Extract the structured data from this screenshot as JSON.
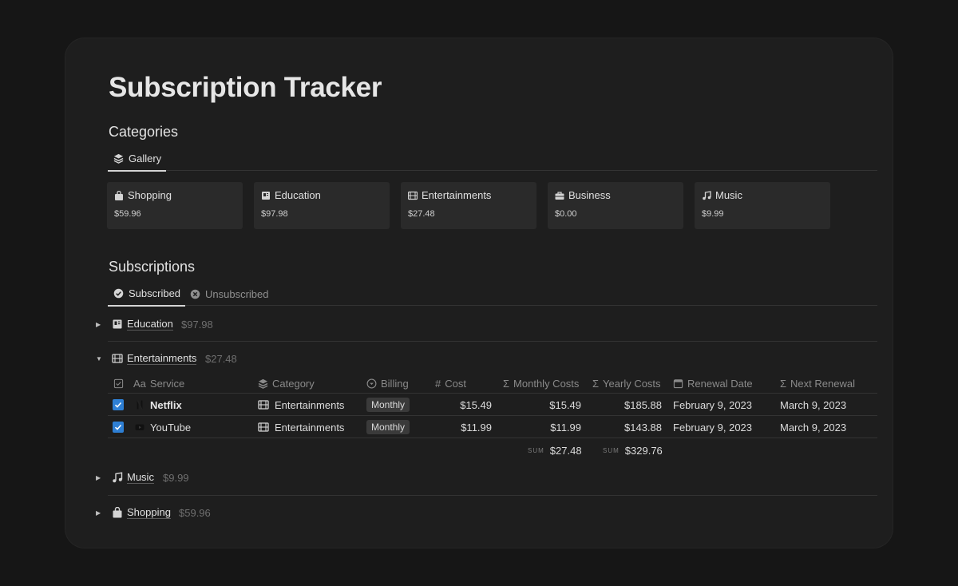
{
  "page": {
    "title": "Subscription Tracker"
  },
  "categories": {
    "heading": "Categories",
    "tabs": [
      {
        "label": "Gallery",
        "icon": "layers-icon",
        "active": true
      }
    ],
    "cards": [
      {
        "name": "Shopping",
        "amount": "$59.96",
        "icon": "shopping-bag-icon"
      },
      {
        "name": "Education",
        "amount": "$97.98",
        "icon": "book-icon"
      },
      {
        "name": "Entertainments",
        "amount": "$27.48",
        "icon": "film-icon"
      },
      {
        "name": "Business",
        "amount": "$0.00",
        "icon": "briefcase-icon"
      },
      {
        "name": "Music",
        "amount": "$9.99",
        "icon": "music-note-icon"
      }
    ]
  },
  "subscriptions": {
    "heading": "Subscriptions",
    "tabs": [
      {
        "label": "Subscribed",
        "icon": "check-circle-icon",
        "active": true
      },
      {
        "label": "Unsubscribed",
        "icon": "x-circle-icon",
        "active": false
      }
    ],
    "groups": [
      {
        "name": "Education",
        "total": "$97.98",
        "expanded": false,
        "icon": "book-icon"
      },
      {
        "name": "Entertainments",
        "total": "$27.48",
        "expanded": true,
        "icon": "film-icon"
      },
      {
        "name": "Music",
        "total": "$9.99",
        "expanded": false,
        "icon": "music-note-icon"
      },
      {
        "name": "Shopping",
        "total": "$59.96",
        "expanded": false,
        "icon": "shopping-bag-icon"
      }
    ],
    "columns": {
      "service": "Service",
      "service_prefix": "Aa",
      "category": "Category",
      "billing": "Billing",
      "cost": "Cost",
      "monthly": "Monthly Costs",
      "yearly": "Yearly Costs",
      "renewal": "Renewal Date",
      "next": "Next Renewal"
    },
    "rows": [
      {
        "service": "Netflix",
        "category": "Entertainments",
        "billing": "Monthly",
        "cost": "$15.49",
        "monthly": "$15.49",
        "yearly": "$185.88",
        "renewal": "February 9, 2023",
        "next": "March 9, 2023",
        "checked": true,
        "icon": "netflix-icon"
      },
      {
        "service": "YouTube",
        "category": "Entertainments",
        "billing": "Monthly",
        "cost": "$11.99",
        "monthly": "$11.99",
        "yearly": "$143.88",
        "renewal": "February 9, 2023",
        "next": "March 9, 2023",
        "checked": true,
        "icon": "youtube-icon"
      }
    ],
    "sums": {
      "label": "SUM",
      "monthly": "$27.48",
      "yearly": "$329.76"
    }
  },
  "colors": {
    "background": "#161616",
    "window": "#1e1e1e",
    "card": "#2a2a2a",
    "checkbox": "#2e7fd4",
    "pill": "#3a3a3a"
  }
}
